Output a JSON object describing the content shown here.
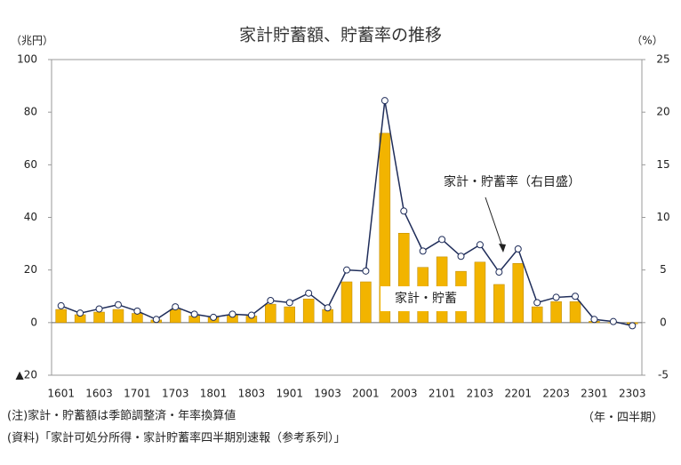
{
  "chart_data": {
    "type": "bar-line",
    "title": "家計貯蓄額、貯蓄率の推移",
    "y_label": "（兆円）",
    "y2_label": "（%）",
    "x_label": "（年・四半期）",
    "notes": [
      "(注)家計・貯蓄額は季節調整済・年率換算値",
      "(資料)「家計可処分所得・家計貯蓄率四半期別速報（参考系列）」"
    ],
    "categories": [
      "1601",
      null,
      "1603",
      null,
      "1701",
      null,
      "1703",
      null,
      "1801",
      null,
      "1803",
      null,
      "1901",
      null,
      "1903",
      null,
      "2001",
      null,
      "2003",
      null,
      "2101",
      null,
      "2103",
      null,
      "2201",
      null,
      "2203",
      null,
      "2301",
      null,
      "2303"
    ],
    "series": [
      {
        "name": "家計・貯蓄",
        "type": "bar",
        "color": "#f2b400",
        "values": [
          5,
          3,
          4,
          5,
          3.5,
          1,
          5,
          2.5,
          2,
          3,
          2.5,
          7,
          6,
          9,
          5,
          15.5,
          15.5,
          72,
          34,
          21,
          25,
          19.5,
          23,
          14.5,
          22.5,
          6,
          8,
          8,
          0.5,
          0,
          -0.5
        ]
      },
      {
        "name": "家計・貯蓄率（右目盛）",
        "type": "line",
        "axis": "y2",
        "color": "#1f2d5a",
        "values": [
          1.6,
          0.9,
          1.3,
          1.7,
          1.1,
          0.3,
          1.5,
          0.8,
          0.5,
          0.8,
          0.7,
          2.1,
          1.9,
          2.8,
          1.4,
          5.0,
          4.9,
          21.1,
          10.6,
          6.8,
          7.9,
          6.3,
          7.4,
          4.8,
          7.0,
          1.9,
          2.4,
          2.5,
          0.3,
          0.1,
          -0.3
        ]
      }
    ],
    "ylim": [
      -20,
      100
    ],
    "yticks": [
      {
        "value": -20,
        "label": "▲20"
      },
      0,
      20,
      40,
      60,
      80,
      100
    ],
    "y2lim": [
      -5,
      25
    ],
    "y2ticks": [
      -5,
      0,
      5,
      10,
      15,
      20,
      25
    ]
  }
}
